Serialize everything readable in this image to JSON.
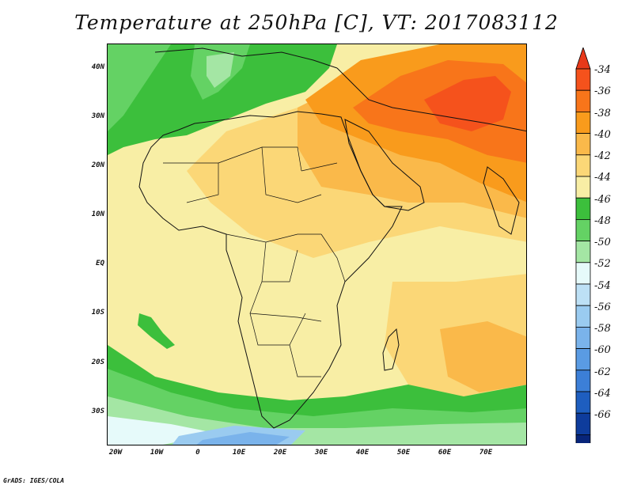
{
  "title": "Temperature at 250hPa [C], VT: 2017083112",
  "footer": "GrADS: IGES/COLA",
  "map": {
    "lat_labels": [
      "40N",
      "30N",
      "20N",
      "10N",
      "EQ",
      "10S",
      "20S",
      "30S"
    ],
    "lon_labels": [
      "20W",
      "10W",
      "0",
      "10E",
      "20E",
      "30E",
      "40E",
      "50E",
      "60E",
      "70E"
    ],
    "lon_range": [
      -22,
      80
    ],
    "lat_range": [
      -37,
      45
    ]
  },
  "colorbar": {
    "labels": [
      "-34",
      "-36",
      "-38",
      "-40",
      "-42",
      "-44",
      "-46",
      "-48",
      "-50",
      "-52",
      "-54",
      "-56",
      "-58",
      "-60",
      "-62",
      "-64",
      "-66"
    ],
    "colors": [
      "#f5521c",
      "#f8751a",
      "#f99b1c",
      "#fab94a",
      "#fbd777",
      "#f8eea5",
      "#3cbf3c",
      "#64d264",
      "#a4e6a4",
      "#e6fafa",
      "#bde0f5",
      "#9acbf0",
      "#7ab3eb",
      "#5a9be3",
      "#3c7fd7",
      "#1e5ebf",
      "#0e3c9c",
      "#08257a"
    ],
    "top_arrow_color": "#e8391a",
    "bottom_arrow_color": "#e8e8fa"
  }
}
